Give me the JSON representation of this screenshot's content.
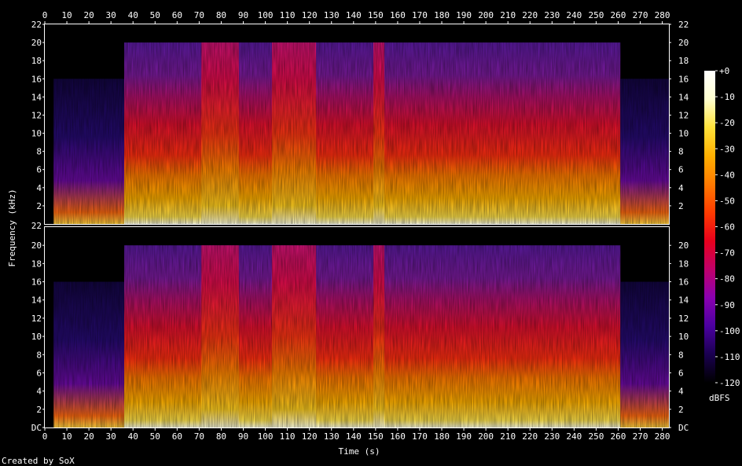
{
  "footer": {
    "credit": "Created by SoX"
  },
  "chart_data": {
    "type": "heatmap",
    "title": "",
    "xlabel": "Time (s)",
    "ylabel": "Frequency (kHz)",
    "colorbar_label": "dBFS",
    "xlim": [
      0,
      283
    ],
    "ylim_khz": [
      0,
      22
    ],
    "x_ticks": [
      0,
      10,
      20,
      30,
      40,
      50,
      60,
      70,
      80,
      90,
      100,
      110,
      120,
      130,
      140,
      150,
      160,
      170,
      180,
      190,
      200,
      210,
      220,
      230,
      240,
      250,
      260,
      270,
      280
    ],
    "channels": [
      {
        "name": "",
        "y_ticks_left": [
          "DC/22",
          "2",
          "4",
          "6",
          "8",
          "10",
          "12",
          "14",
          "16",
          "18",
          "20",
          "22"
        ],
        "y_ticks_right": [
          "2",
          "4",
          "6",
          "8",
          "10",
          "12",
          "14",
          "16",
          "18",
          "20",
          "22"
        ]
      },
      {
        "name": "",
        "y_ticks_left": [
          "DC",
          "2",
          "4",
          "6",
          "8",
          "10",
          "12",
          "14",
          "16",
          "18",
          "20"
        ],
        "y_ticks_right": [
          "DC",
          "2",
          "4",
          "6",
          "8",
          "10",
          "12",
          "14",
          "16",
          "18",
          "20"
        ]
      }
    ],
    "colorbar_ticks": [
      "+0",
      "-10",
      "-20",
      "-30",
      "-40",
      "-50",
      "-60",
      "-70",
      "-80",
      "-90",
      "-100",
      "-110",
      "-120"
    ],
    "colorbar_range_dbfs": [
      -120,
      0
    ],
    "colormap": [
      "#000000",
      "#1a0050",
      "#4b00a0",
      "#8a00b0",
      "#c0006a",
      "#e8001c",
      "#ff3b00",
      "#ff7a00",
      "#ffb000",
      "#ffe23a",
      "#ffffd0",
      "#ffffff"
    ],
    "bandwidth_segments_s_khz": [
      {
        "start": 0,
        "end": 4,
        "cutoff": 0
      },
      {
        "start": 4,
        "end": 36,
        "cutoff": 16
      },
      {
        "start": 36,
        "end": 261,
        "cutoff": 20
      },
      {
        "start": 261,
        "end": 283,
        "cutoff": 16
      }
    ],
    "loud_sections_s": [
      [
        71,
        80
      ],
      [
        80,
        88
      ],
      [
        103,
        123
      ],
      [
        149,
        154
      ]
    ]
  }
}
